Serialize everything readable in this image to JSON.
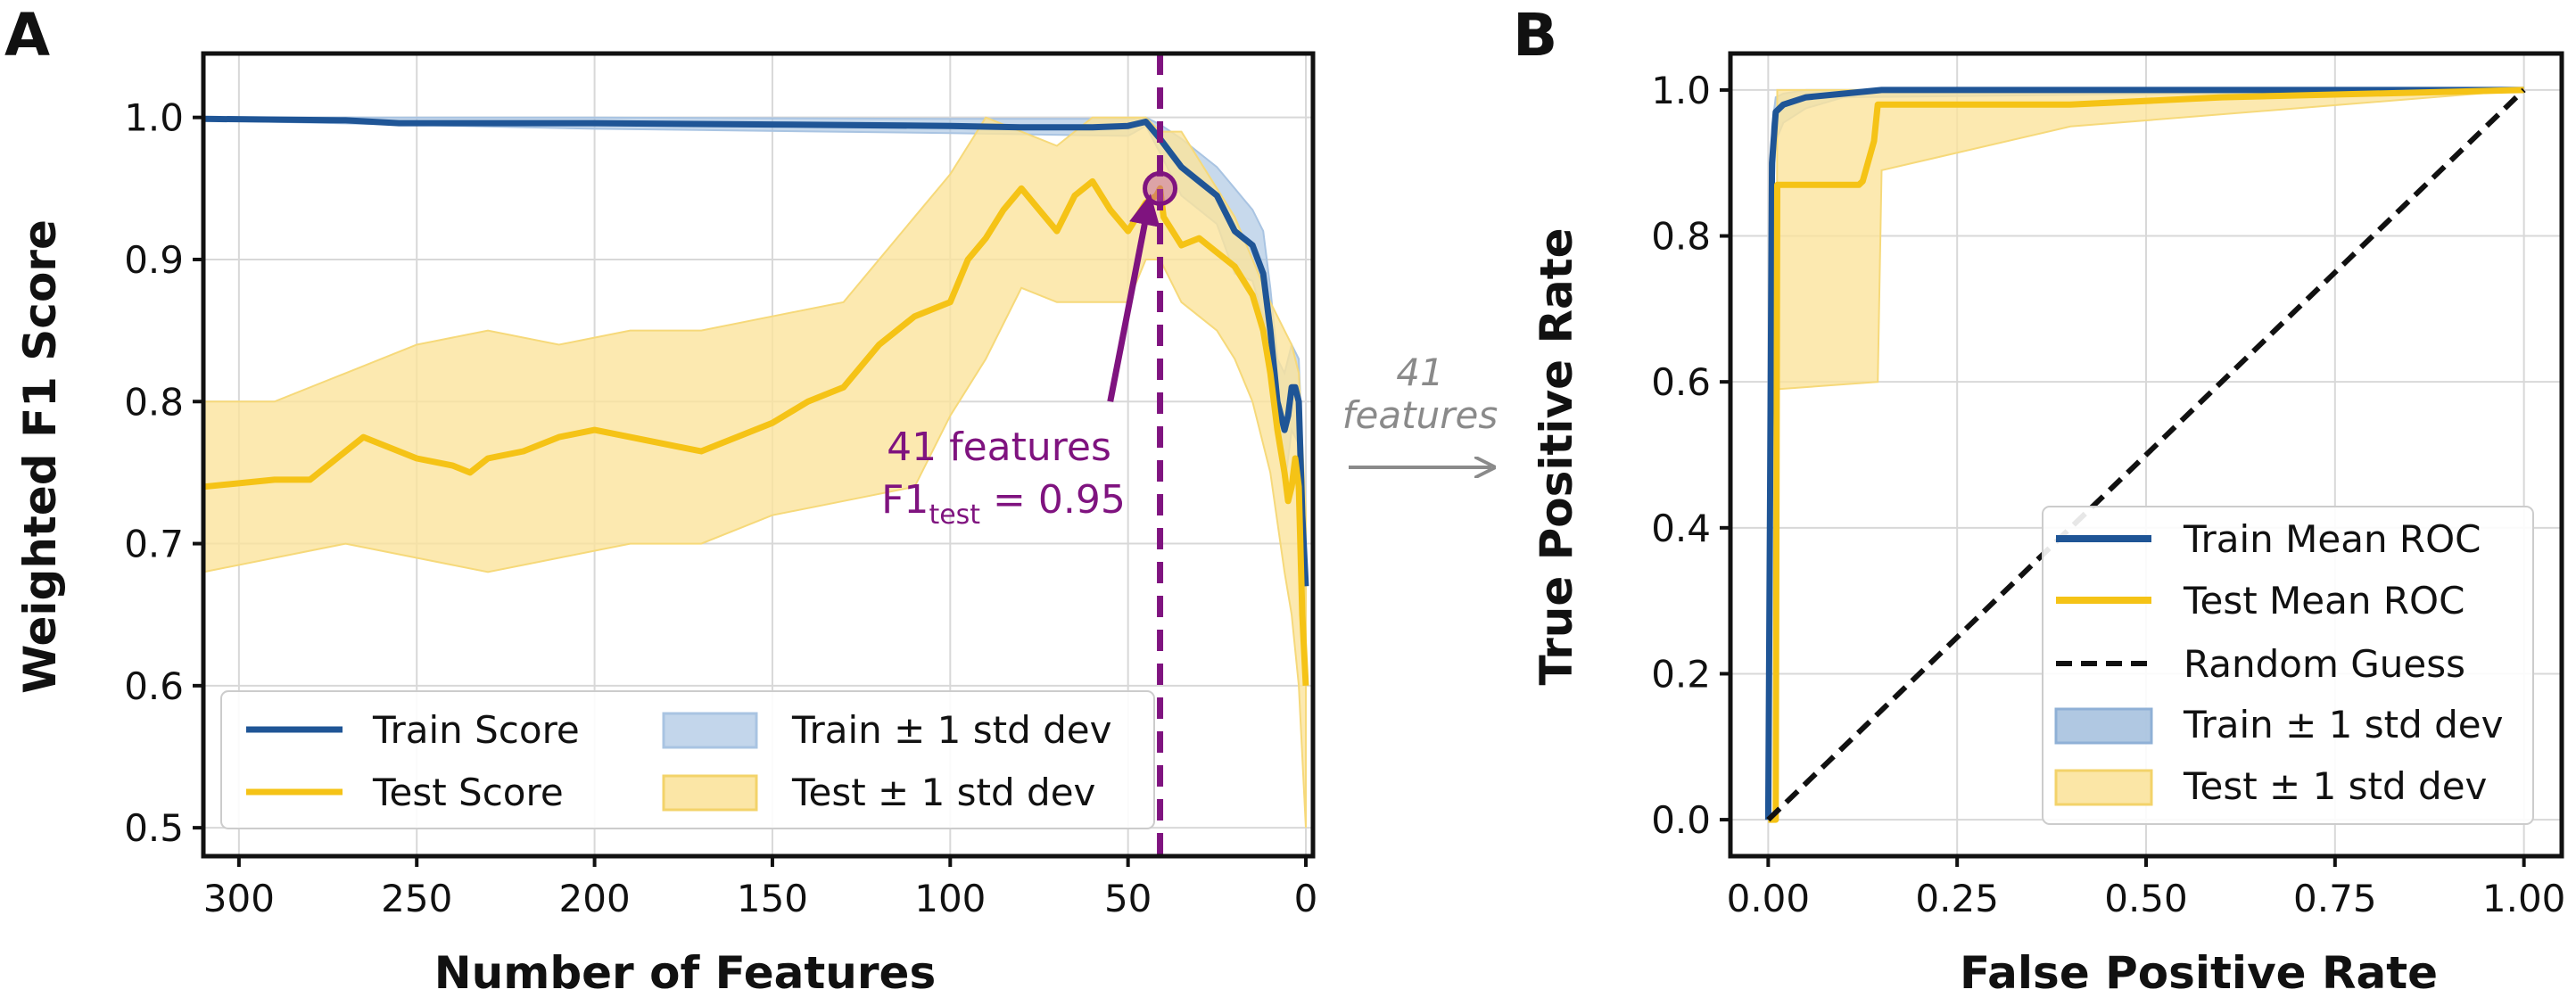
{
  "colors": {
    "train": "#1f5596",
    "train_band": "#a9c4e2",
    "test": "#f5c316",
    "test_band": "#fbe39c",
    "highlight": "#7f137f",
    "connector": "#8a8a8a",
    "random": "#111111"
  },
  "connector": {
    "line1": "41",
    "line2": "features"
  },
  "chart_data": [
    {
      "panel_label": "A",
      "type": "line",
      "title": "",
      "xlabel": "Number of Features",
      "ylabel": "Weighted F1 Score",
      "xlim": [
        310,
        -2
      ],
      "ylim": [
        0.48,
        1.045
      ],
      "x_ticks": [
        300,
        250,
        200,
        150,
        100,
        50,
        0
      ],
      "x_tick_labels": [
        "300",
        "250",
        "200",
        "150",
        "100",
        "50",
        "0"
      ],
      "y_ticks": [
        0.5,
        0.6,
        0.7,
        0.8,
        0.9,
        1.0
      ],
      "y_tick_labels": [
        "0.5",
        "0.6",
        "0.7",
        "0.8",
        "0.9",
        "1.0"
      ],
      "grid": true,
      "legend_position": "lower-left",
      "legend": [
        {
          "label": "Train Score",
          "kind": "line",
          "series": "train"
        },
        {
          "label": "Test Score",
          "kind": "line",
          "series": "test"
        },
        {
          "label": "Train ± 1 std dev",
          "kind": "band",
          "series": "train"
        },
        {
          "label": "Test ± 1 std dev",
          "kind": "band",
          "series": "test"
        }
      ],
      "series": [
        {
          "name": "Train Score",
          "x": [
            310,
            270,
            255,
            200,
            150,
            100,
            80,
            60,
            50,
            45,
            41,
            38,
            35,
            30,
            25,
            20,
            15,
            12,
            10,
            8,
            6,
            5,
            4,
            3,
            2,
            1,
            0
          ],
          "y": [
            0.999,
            0.998,
            0.996,
            0.996,
            0.995,
            0.994,
            0.993,
            0.993,
            0.994,
            0.997,
            0.985,
            0.975,
            0.965,
            0.955,
            0.945,
            0.92,
            0.91,
            0.89,
            0.85,
            0.8,
            0.78,
            0.79,
            0.81,
            0.81,
            0.8,
            0.72,
            0.67
          ]
        },
        {
          "name": "Test Score",
          "x": [
            310,
            290,
            280,
            270,
            265,
            260,
            250,
            240,
            235,
            230,
            220,
            210,
            200,
            190,
            180,
            170,
            160,
            150,
            140,
            130,
            120,
            110,
            100,
            95,
            90,
            85,
            80,
            75,
            70,
            65,
            60,
            55,
            50,
            45,
            42,
            41,
            40,
            35,
            30,
            25,
            20,
            15,
            12,
            10,
            8,
            6,
            5,
            4,
            3,
            2,
            1,
            0
          ],
          "y": [
            0.74,
            0.745,
            0.745,
            0.765,
            0.775,
            0.77,
            0.76,
            0.755,
            0.75,
            0.76,
            0.765,
            0.775,
            0.78,
            0.775,
            0.77,
            0.765,
            0.775,
            0.785,
            0.8,
            0.81,
            0.84,
            0.86,
            0.87,
            0.9,
            0.915,
            0.935,
            0.95,
            0.935,
            0.92,
            0.945,
            0.955,
            0.935,
            0.92,
            0.94,
            0.945,
            0.95,
            0.93,
            0.91,
            0.915,
            0.905,
            0.895,
            0.875,
            0.85,
            0.82,
            0.78,
            0.75,
            0.73,
            0.74,
            0.76,
            0.74,
            0.65,
            0.6
          ]
        },
        {
          "name": "Train ± 1 std dev",
          "x": [
            310,
            200,
            100,
            50,
            45,
            41,
            35,
            30,
            25,
            20,
            15,
            12,
            10,
            8,
            6,
            4,
            2,
            0
          ],
          "upper": [
            1.0,
            1.0,
            0.999,
            0.999,
            1.0,
            0.995,
            0.985,
            0.975,
            0.965,
            0.95,
            0.935,
            0.92,
            0.88,
            0.83,
            0.82,
            0.84,
            0.83,
            0.7
          ],
          "lower": [
            0.998,
            0.992,
            0.989,
            0.987,
            0.994,
            0.975,
            0.945,
            0.935,
            0.925,
            0.89,
            0.885,
            0.86,
            0.82,
            0.77,
            0.74,
            0.78,
            0.77,
            0.64
          ]
        },
        {
          "name": "Test ± 1 std dev",
          "x": [
            310,
            290,
            270,
            250,
            230,
            210,
            190,
            170,
            150,
            130,
            110,
            100,
            90,
            80,
            70,
            60,
            50,
            45,
            41,
            35,
            30,
            25,
            20,
            15,
            10,
            6,
            4,
            2,
            0
          ],
          "upper": [
            0.8,
            0.8,
            0.82,
            0.84,
            0.85,
            0.84,
            0.85,
            0.85,
            0.86,
            0.87,
            0.93,
            0.96,
            1.0,
            0.99,
            0.98,
            1.0,
            1.0,
            1.0,
            0.99,
            0.99,
            0.97,
            0.95,
            0.93,
            0.9,
            0.87,
            0.85,
            0.84,
            0.82,
            0.72
          ],
          "lower": [
            0.68,
            0.69,
            0.7,
            0.69,
            0.68,
            0.69,
            0.7,
            0.7,
            0.72,
            0.73,
            0.74,
            0.79,
            0.83,
            0.88,
            0.87,
            0.87,
            0.87,
            0.9,
            0.9,
            0.87,
            0.86,
            0.85,
            0.83,
            0.8,
            0.75,
            0.68,
            0.65,
            0.6,
            0.5
          ]
        }
      ],
      "vline": {
        "x": 41
      },
      "highlight_point": {
        "x": 41,
        "y": 0.95
      },
      "annotation": {
        "line1": "41 features",
        "f1_main": "F1",
        "f1_sub": "test",
        "f1_value": " = 0.95",
        "arrow_from": {
          "x": 55,
          "y": 0.8
        },
        "arrow_to": {
          "x": 44,
          "y": 0.942
        }
      }
    },
    {
      "panel_label": "B",
      "type": "line",
      "title": "",
      "xlabel": "False Positive Rate",
      "ylabel": "True Positive Rate",
      "xlim": [
        -0.05,
        1.05
      ],
      "ylim": [
        -0.05,
        1.05
      ],
      "x_ticks": [
        0.0,
        0.25,
        0.5,
        0.75,
        1.0
      ],
      "x_tick_labels": [
        "0.00",
        "0.25",
        "0.50",
        "0.75",
        "1.00"
      ],
      "y_ticks": [
        0.0,
        0.2,
        0.4,
        0.6,
        0.8,
        1.0
      ],
      "y_tick_labels": [
        "0.0",
        "0.2",
        "0.4",
        "0.6",
        "0.8",
        "1.0"
      ],
      "grid": true,
      "legend_position": "lower-right",
      "legend": [
        {
          "label": "Train Mean ROC",
          "kind": "line",
          "series": "train"
        },
        {
          "label": "Test Mean ROC",
          "kind": "line",
          "series": "test"
        },
        {
          "label": "Random Guess",
          "kind": "dash",
          "series": "random"
        },
        {
          "label": "Train ± 1 std dev",
          "kind": "band",
          "series": "train"
        },
        {
          "label": "Test ± 1 std dev",
          "kind": "band",
          "series": "test"
        }
      ],
      "series": [
        {
          "name": "Train Mean ROC",
          "x": [
            0.0,
            0.005,
            0.01,
            0.02,
            0.05,
            0.1,
            0.15,
            0.25,
            0.5,
            1.0
          ],
          "y": [
            0.0,
            0.9,
            0.97,
            0.98,
            0.99,
            0.995,
            1.0,
            1.0,
            1.0,
            1.0
          ]
        },
        {
          "name": "Test Mean ROC",
          "x": [
            0.0,
            0.01,
            0.012,
            0.07,
            0.12,
            0.125,
            0.14,
            0.145,
            0.4,
            0.6,
            1.0
          ],
          "y": [
            0.0,
            0.0,
            0.87,
            0.87,
            0.87,
            0.875,
            0.93,
            0.98,
            0.98,
            0.99,
            1.0
          ]
        },
        {
          "name": "Random Guess",
          "x": [
            0.0,
            1.0
          ],
          "y": [
            0.0,
            1.0
          ]
        },
        {
          "name": "Train ± 1 std dev",
          "x": [
            0.0,
            0.005,
            0.01,
            0.02,
            0.05,
            0.1,
            1.0
          ],
          "upper": [
            0.0,
            0.95,
            0.99,
            0.995,
            1.0,
            1.0,
            1.0
          ],
          "lower": [
            0.0,
            0.82,
            0.93,
            0.955,
            0.975,
            0.99,
            1.0
          ]
        },
        {
          "name": "Test ± 1 std dev",
          "x": [
            0.0,
            0.01,
            0.012,
            0.145,
            0.15,
            0.4,
            1.0
          ],
          "upper": [
            0.0,
            0.0,
            1.0,
            1.0,
            1.0,
            1.0,
            1.0
          ],
          "lower": [
            0.0,
            0.0,
            0.59,
            0.6,
            0.89,
            0.95,
            1.0
          ]
        }
      ]
    }
  ]
}
